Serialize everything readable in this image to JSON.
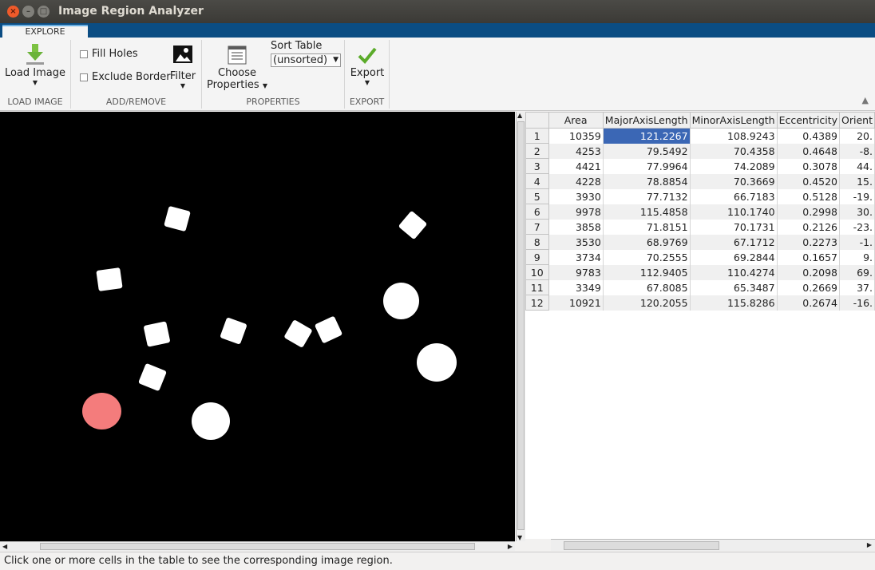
{
  "window": {
    "title": "Image Region Analyzer"
  },
  "tabs": [
    {
      "label": "EXPLORE"
    }
  ],
  "toolstrip": {
    "load_image": {
      "label": "Load Image",
      "section": "LOAD IMAGE"
    },
    "add_remove": {
      "fill_holes": "Fill Holes",
      "exclude_border": "Exclude Border",
      "filter": "Filter",
      "section": "ADD/REMOVE"
    },
    "properties": {
      "choose_line1": "Choose",
      "choose_line2": "Properties",
      "sort_label": "Sort Table",
      "sort_value": "(unsorted)",
      "section": "PROPERTIES"
    },
    "export": {
      "label": "Export",
      "section": "EXPORT"
    }
  },
  "table": {
    "columns": [
      "Area",
      "MajorAxisLength",
      "MinorAxisLength",
      "Eccentricity",
      "Orient"
    ],
    "rows": [
      {
        "id": "1",
        "cells": [
          "10359",
          "121.2267",
          "108.9243",
          "0.4389",
          "20."
        ]
      },
      {
        "id": "2",
        "cells": [
          "4253",
          "79.5492",
          "70.4358",
          "0.4648",
          "-8."
        ]
      },
      {
        "id": "3",
        "cells": [
          "4421",
          "77.9964",
          "74.2089",
          "0.3078",
          "44."
        ]
      },
      {
        "id": "4",
        "cells": [
          "4228",
          "78.8854",
          "70.3669",
          "0.4520",
          "15."
        ]
      },
      {
        "id": "5",
        "cells": [
          "3930",
          "77.7132",
          "66.7183",
          "0.5128",
          "-19."
        ]
      },
      {
        "id": "6",
        "cells": [
          "9978",
          "115.4858",
          "110.1740",
          "0.2998",
          "30."
        ]
      },
      {
        "id": "7",
        "cells": [
          "3858",
          "71.8151",
          "70.1731",
          "0.2126",
          "-23."
        ]
      },
      {
        "id": "8",
        "cells": [
          "3530",
          "68.9769",
          "67.1712",
          "0.2273",
          "-1."
        ]
      },
      {
        "id": "9",
        "cells": [
          "3734",
          "70.2555",
          "69.2844",
          "0.1657",
          "9."
        ]
      },
      {
        "id": "10",
        "cells": [
          "9783",
          "112.9405",
          "110.4274",
          "0.2098",
          "69."
        ]
      },
      {
        "id": "11",
        "cells": [
          "3349",
          "67.8085",
          "65.3487",
          "0.2669",
          "37."
        ]
      },
      {
        "id": "12",
        "cells": [
          "10921",
          "120.2055",
          "115.8286",
          "0.2674",
          "-16."
        ]
      }
    ]
  },
  "colors": {
    "selected_cell": "#3b67b5",
    "highlight_region": "#f47c7c",
    "tab_strip": "#0b4d83"
  },
  "status": {
    "text": "Click one or more cells in the table to see the corresponding image region."
  }
}
